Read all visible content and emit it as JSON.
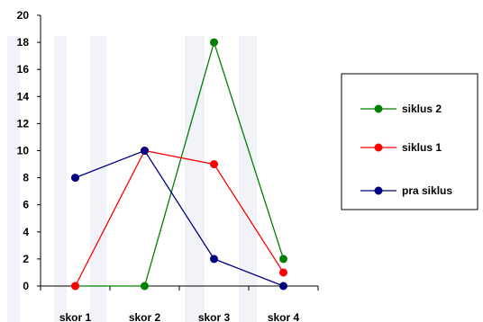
{
  "chart_data": {
    "type": "line",
    "title": "",
    "xlabel": "",
    "ylabel": "",
    "categories": [
      "skor 1",
      "skor 2",
      "skor 3",
      "skor 4"
    ],
    "ylim": [
      0,
      20
    ],
    "yticks": [
      0,
      2,
      4,
      6,
      8,
      10,
      12,
      14,
      16,
      18,
      20
    ],
    "grid": false,
    "legend_position": "right",
    "series": [
      {
        "name": "siklus 2",
        "color": "#008000",
        "values": [
          0,
          0,
          18,
          2
        ]
      },
      {
        "name": "siklus 1",
        "color": "#ff0000",
        "values": [
          0,
          10,
          9,
          1
        ]
      },
      {
        "name": "pra siklus",
        "color": "#000080",
        "values": [
          8,
          10,
          2,
          0
        ]
      }
    ]
  }
}
